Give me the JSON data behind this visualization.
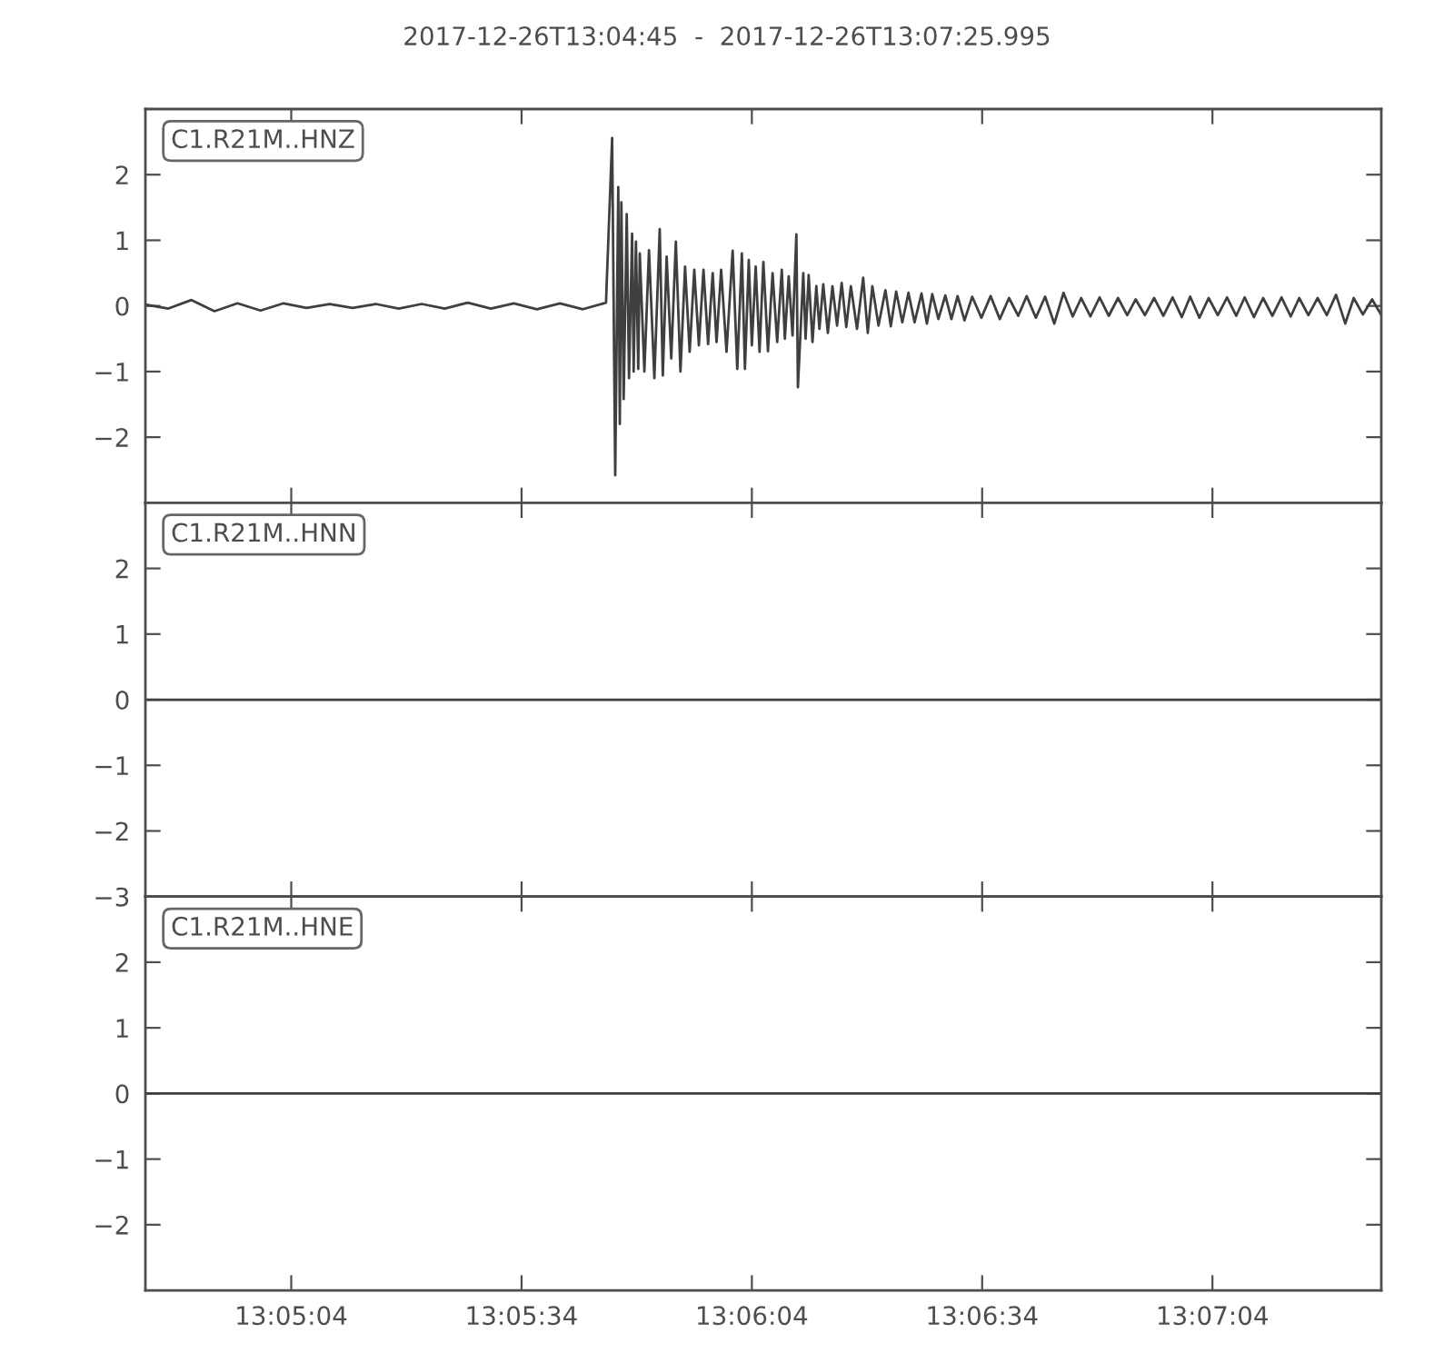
{
  "chart_data": [
    {
      "type": "line",
      "title": "2017-12-26T13:04:45  -  2017-12-26T13:07:25.995",
      "annotations": [
        "C1.R21M..HNZ"
      ],
      "series": [
        {
          "color": "#3f3f3f",
          "x": [
            "2017-12-26T13:04:45",
            "2017-12-26T13:04:48",
            "2017-12-26T13:04:51",
            "2017-12-26T13:04:54",
            "2017-12-26T13:04:57",
            "2017-12-26T13:05:00",
            "2017-12-26T13:05:03",
            "2017-12-26T13:05:06",
            "2017-12-26T13:05:09",
            "2017-12-26T13:05:12",
            "2017-12-26T13:05:15",
            "2017-12-26T13:05:18",
            "2017-12-26T13:05:21",
            "2017-12-26T13:05:24",
            "2017-12-26T13:05:27",
            "2017-12-26T13:05:30",
            "2017-12-26T13:05:33",
            "2017-12-26T13:05:36",
            "2017-12-26T13:05:39",
            "2017-12-26T13:05:42",
            "2017-12-26T13:05:45",
            "2017-12-26T13:05:45.8",
            "2017-12-26T13:05:46.2",
            "2017-12-26T13:05:46.6",
            "2017-12-26T13:05:46.8",
            "2017-12-26T13:05:47.0",
            "2017-12-26T13:05:47.3",
            "2017-12-26T13:05:47.7",
            "2017-12-26T13:05:48.0",
            "2017-12-26T13:05:48.4",
            "2017-12-26T13:05:48.6",
            "2017-12-26T13:05:48.9",
            "2017-12-26T13:05:49.2",
            "2017-12-26T13:05:49.4",
            "2017-12-26T13:05:50.0",
            "2017-12-26T13:05:50.6",
            "2017-12-26T13:05:51.3",
            "2017-12-26T13:05:52.0",
            "2017-12-26T13:05:52.4",
            "2017-12-26T13:05:52.9",
            "2017-12-26T13:05:53.5",
            "2017-12-26T13:05:54.1",
            "2017-12-26T13:05:54.7",
            "2017-12-26T13:05:55.3",
            "2017-12-26T13:05:55.9",
            "2017-12-26T13:05:56.5",
            "2017-12-26T13:05:57.1",
            "2017-12-26T13:05:57.7",
            "2017-12-26T13:05:58.3",
            "2017-12-26T13:05:58.9",
            "2017-12-26T13:05:59.4",
            "2017-12-26T13:06:00.0",
            "2017-12-26T13:06:00.7",
            "2017-12-26T13:06:01.5",
            "2017-12-26T13:06:02.1",
            "2017-12-26T13:06:02.7",
            "2017-12-26T13:06:03.1",
            "2017-12-26T13:06:03.6",
            "2017-12-26T13:06:04.0",
            "2017-12-26T13:06:04.5",
            "2017-12-26T13:06:05.0",
            "2017-12-26T13:06:05.5",
            "2017-12-26T13:06:06.1",
            "2017-12-26T13:06:06.7",
            "2017-12-26T13:06:07.3",
            "2017-12-26T13:06:07.9",
            "2017-12-26T13:06:08.3",
            "2017-12-26T13:06:08.8",
            "2017-12-26T13:06:09.3",
            "2017-12-26T13:06:09.8",
            "2017-12-26T13:06:10.0",
            "2017-12-26T13:06:10.7",
            "2017-12-26T13:06:11.0",
            "2017-12-26T13:06:11.4",
            "2017-12-26T13:06:11.9",
            "2017-12-26T13:06:12.4",
            "2017-12-26T13:06:12.8",
            "2017-12-26T13:06:13.3",
            "2017-12-26T13:06:13.9",
            "2017-12-26T13:06:14.5",
            "2017-12-26T13:06:15.1",
            "2017-12-26T13:06:15.7",
            "2017-12-26T13:06:16.3",
            "2017-12-26T13:06:16.9",
            "2017-12-26T13:06:17.7",
            "2017-12-26T13:06:18.5",
            "2017-12-26T13:06:19.1",
            "2017-12-26T13:06:19.7",
            "2017-12-26T13:06:20.5",
            "2017-12-26T13:06:21.4",
            "2017-12-26T13:06:22.1",
            "2017-12-26T13:06:22.8",
            "2017-12-26T13:06:23.6",
            "2017-12-26T13:06:24.4",
            "2017-12-26T13:06:25.2",
            "2017-12-26T13:06:26.1",
            "2017-12-26T13:06:26.8",
            "2017-12-26T13:06:27.5",
            "2017-12-26T13:06:28.3",
            "2017-12-26T13:06:29.2",
            "2017-12-26T13:06:30.0",
            "2017-12-26T13:06:30.8",
            "2017-12-26T13:06:31.7",
            "2017-12-26T13:06:32.7",
            "2017-12-26T13:06:33.9",
            "2017-12-26T13:06:35.1",
            "2017-12-26T13:06:36.3",
            "2017-12-26T13:06:37.5",
            "2017-12-26T13:06:38.7",
            "2017-12-26T13:06:39.8",
            "2017-12-26T13:06:41.0",
            "2017-12-26T13:06:42.2",
            "2017-12-26T13:06:43.4",
            "2017-12-26T13:06:44.6",
            "2017-12-26T13:06:45.8",
            "2017-12-26T13:06:46.9",
            "2017-12-26T13:06:48.1",
            "2017-12-26T13:06:49.3",
            "2017-12-26T13:06:50.5",
            "2017-12-26T13:06:51.7",
            "2017-12-26T13:06:52.9",
            "2017-12-26T13:06:54.0",
            "2017-12-26T13:06:55.2",
            "2017-12-26T13:06:56.4",
            "2017-12-26T13:06:57.6",
            "2017-12-26T13:06:58.8",
            "2017-12-26T13:07:00.0",
            "2017-12-26T13:07:01.1",
            "2017-12-26T13:07:02.3",
            "2017-12-26T13:07:03.5",
            "2017-12-26T13:07:04.7",
            "2017-12-26T13:07:05.9",
            "2017-12-26T13:07:07.1",
            "2017-12-26T13:07:08.2",
            "2017-12-26T13:07:09.4",
            "2017-12-26T13:07:10.6",
            "2017-12-26T13:07:11.8",
            "2017-12-26T13:07:13.0",
            "2017-12-26T13:07:14.2",
            "2017-12-26T13:07:15.3",
            "2017-12-26T13:07:16.5",
            "2017-12-26T13:07:17.7",
            "2017-12-26T13:07:18.9",
            "2017-12-26T13:07:20.1",
            "2017-12-26T13:07:21.3",
            "2017-12-26T13:07:22.4",
            "2017-12-26T13:07:23.6",
            "2017-12-26T13:07:24.8",
            "2017-12-26T13:07:25.9"
          ],
          "values": [
            0.02,
            -0.04,
            0.09,
            -0.08,
            0.04,
            -0.07,
            0.04,
            -0.03,
            0.03,
            -0.03,
            0.03,
            -0.04,
            0.03,
            -0.04,
            0.05,
            -0.04,
            0.04,
            -0.05,
            0.04,
            -0.05,
            0.05,
            2.56,
            -2.58,
            1.81,
            -1.8,
            1.58,
            -1.42,
            1.4,
            -1.1,
            1.1,
            -1.0,
            0.98,
            -0.96,
            0.8,
            -1.0,
            0.85,
            -1.1,
            1.17,
            -1.06,
            0.75,
            -0.8,
            0.98,
            -1.0,
            0.6,
            -0.7,
            0.55,
            -0.6,
            0.55,
            -0.58,
            0.5,
            -0.55,
            0.55,
            -0.7,
            0.84,
            -0.96,
            0.8,
            -0.96,
            0.7,
            -0.6,
            0.6,
            -0.7,
            0.67,
            -0.69,
            0.5,
            -0.55,
            0.55,
            -0.5,
            0.45,
            -0.45,
            1.09,
            -1.24,
            0.5,
            -0.5,
            0.47,
            -0.55,
            0.3,
            -0.35,
            0.33,
            -0.41,
            0.3,
            -0.3,
            0.35,
            -0.32,
            0.3,
            -0.35,
            0.43,
            -0.41,
            0.3,
            -0.3,
            0.24,
            -0.31,
            0.22,
            -0.25,
            0.2,
            -0.25,
            0.19,
            -0.27,
            0.18,
            -0.2,
            0.16,
            -0.2,
            0.15,
            -0.22,
            0.14,
            -0.18,
            0.15,
            -0.2,
            0.12,
            -0.15,
            0.15,
            -0.18,
            0.14,
            -0.27,
            0.2,
            -0.16,
            0.12,
            -0.16,
            0.13,
            -0.15,
            0.12,
            -0.14,
            0.1,
            -0.14,
            0.12,
            -0.15,
            0.13,
            -0.17,
            0.14,
            -0.18,
            0.12,
            -0.14,
            0.13,
            -0.15,
            0.13,
            -0.17,
            0.12,
            -0.15,
            0.13,
            -0.16,
            0.12,
            -0.14,
            0.12,
            -0.14,
            0.17,
            -0.27,
            0.12,
            -0.13,
            0.1,
            -0.12
          ]
        }
      ],
      "xlim": [
        "2017-12-26T13:04:45",
        "2017-12-26T13:07:25.995"
      ],
      "xticks": [
        {
          "value": "2017-12-26T13:05:04",
          "label": null
        },
        {
          "value": "2017-12-26T13:05:34",
          "label": null
        },
        {
          "value": "2017-12-26T13:06:04",
          "label": null
        },
        {
          "value": "2017-12-26T13:06:34",
          "label": null
        },
        {
          "value": "2017-12-26T13:07:04",
          "label": null
        }
      ],
      "ylim": [
        -3,
        3
      ],
      "yticks": [
        -2,
        -1,
        0,
        1,
        2
      ],
      "tick_labels": "y"
    },
    {
      "type": "line",
      "annotations": [
        "C1.R21M..HNN"
      ],
      "series": [
        {
          "color": "#3f3f3f",
          "x": [
            "2017-12-26T13:04:45",
            "2017-12-26T13:07:25.995"
          ],
          "values": [
            0,
            0
          ]
        }
      ],
      "xlim": [
        "2017-12-26T13:04:45",
        "2017-12-26T13:07:25.995"
      ],
      "xticks": [
        {
          "value": "2017-12-26T13:05:04",
          "label": null
        },
        {
          "value": "2017-12-26T13:05:34",
          "label": null
        },
        {
          "value": "2017-12-26T13:06:04",
          "label": null
        },
        {
          "value": "2017-12-26T13:06:34",
          "label": null
        },
        {
          "value": "2017-12-26T13:07:04",
          "label": null
        }
      ],
      "ylim": [
        -3,
        3
      ],
      "yticks": [
        -3,
        -2,
        -1,
        0,
        1,
        2
      ],
      "tick_labels": "y"
    },
    {
      "type": "line",
      "annotations": [
        "C1.R21M..HNE"
      ],
      "series": [
        {
          "color": "#3f3f3f",
          "x": [
            "2017-12-26T13:04:45",
            "2017-12-26T13:07:25.995"
          ],
          "values": [
            0,
            0
          ]
        }
      ],
      "xlim": [
        "2017-12-26T13:04:45",
        "2017-12-26T13:07:25.995"
      ],
      "xticks": [
        {
          "value": "2017-12-26T13:05:04",
          "label": "13:05:04"
        },
        {
          "value": "2017-12-26T13:05:34",
          "label": "13:05:34"
        },
        {
          "value": "2017-12-26T13:06:04",
          "label": "13:06:04"
        },
        {
          "value": "2017-12-26T13:06:34",
          "label": "13:06:34"
        },
        {
          "value": "2017-12-26T13:07:04",
          "label": "13:07:04"
        }
      ],
      "ylim": [
        -3,
        3
      ],
      "yticks": [
        -2,
        -1,
        0,
        1,
        2
      ]
    }
  ]
}
